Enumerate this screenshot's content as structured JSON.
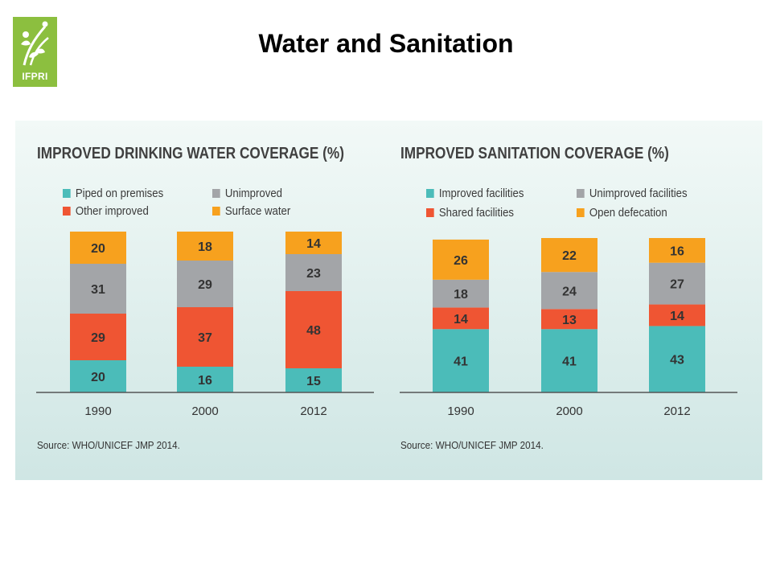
{
  "header": {
    "title": "Water and Sanitation",
    "logo_text": "IFPRI"
  },
  "colors": {
    "teal": "#4bbcb9",
    "red": "#ef5533",
    "gray": "#a3a5a8",
    "orange": "#f7a11e"
  },
  "chart_data": [
    {
      "type": "bar",
      "stacked": true,
      "title": "IMPROVED DRINKING WATER COVERAGE (%)",
      "categories": [
        "1990",
        "2000",
        "2012"
      ],
      "series": [
        {
          "name": "Piped on premises",
          "color": "#4bbcb9",
          "values": [
            20,
            16,
            15
          ]
        },
        {
          "name": "Other improved",
          "color": "#ef5533",
          "values": [
            29,
            37,
            48
          ]
        },
        {
          "name": "Unimproved",
          "color": "#a3a5a8",
          "values": [
            31,
            29,
            23
          ]
        },
        {
          "name": "Surface water",
          "color": "#f7a11e",
          "values": [
            20,
            18,
            14
          ]
        }
      ],
      "legend_order": [
        "Piped on premises",
        "Unimproved",
        "Other improved",
        "Surface water"
      ],
      "ylim": [
        0,
        100
      ],
      "grid": false,
      "legend": "top-left",
      "source": "Source: WHO/UNICEF JMP 2014."
    },
    {
      "type": "bar",
      "stacked": true,
      "title": "IMPROVED SANITATION COVERAGE (%)",
      "categories": [
        "1990",
        "2000",
        "2012"
      ],
      "series": [
        {
          "name": "Improved facilities",
          "color": "#4bbcb9",
          "values": [
            41,
            41,
            43
          ]
        },
        {
          "name": "Shared facilities",
          "color": "#ef5533",
          "values": [
            14,
            13,
            14
          ]
        },
        {
          "name": "Unimproved facilities",
          "color": "#a3a5a8",
          "values": [
            18,
            24,
            27
          ]
        },
        {
          "name": "Open defecation",
          "color": "#f7a11e",
          "values": [
            26,
            22,
            16
          ]
        }
      ],
      "legend_order": [
        "Improved facilities",
        "Unimproved facilities",
        "Shared facilities",
        "Open defecation"
      ],
      "ylim": [
        0,
        100
      ],
      "grid": false,
      "legend": "top-left",
      "source": "Source: WHO/UNICEF JMP 2014."
    }
  ]
}
